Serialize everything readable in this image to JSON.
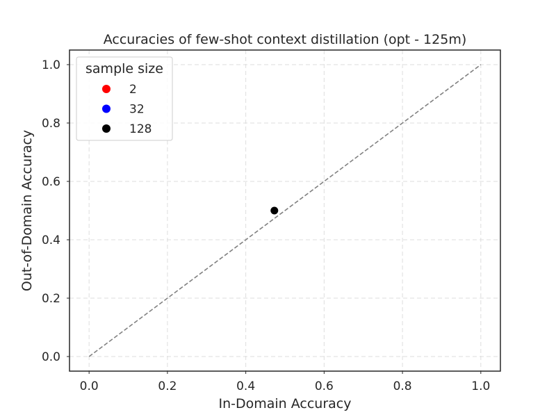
{
  "chart_data": {
    "type": "scatter",
    "title": "Accuracies of few-shot context distillation (opt - 125m)",
    "xlabel": "In-Domain Accuracy",
    "ylabel": "Out-of-Domain Accuracy",
    "xlim": [
      -0.05,
      1.05
    ],
    "ylim": [
      -0.05,
      1.05
    ],
    "xticks": [
      0.0,
      0.2,
      0.4,
      0.6,
      0.8,
      1.0
    ],
    "yticks": [
      0.0,
      0.2,
      0.4,
      0.6,
      0.8,
      1.0
    ],
    "xtick_labels": [
      "0.0",
      "0.2",
      "0.4",
      "0.6",
      "0.8",
      "1.0"
    ],
    "ytick_labels": [
      "0.0",
      "0.2",
      "0.4",
      "0.6",
      "0.8",
      "1.0"
    ],
    "grid": true,
    "legend": {
      "title": "sample size",
      "placement": "top-left",
      "entries": [
        {
          "label": "2",
          "color": "#ff0000"
        },
        {
          "label": "32",
          "color": "#0000ff"
        },
        {
          "label": "128",
          "color": "#000000"
        }
      ]
    },
    "reference_line": {
      "x": [
        0.0,
        1.0
      ],
      "y": [
        0.0,
        1.0
      ],
      "color": "#808080",
      "style": "dashed"
    },
    "points": [
      {
        "x": 0.473,
        "y": 0.5,
        "color": "#000000"
      }
    ]
  }
}
